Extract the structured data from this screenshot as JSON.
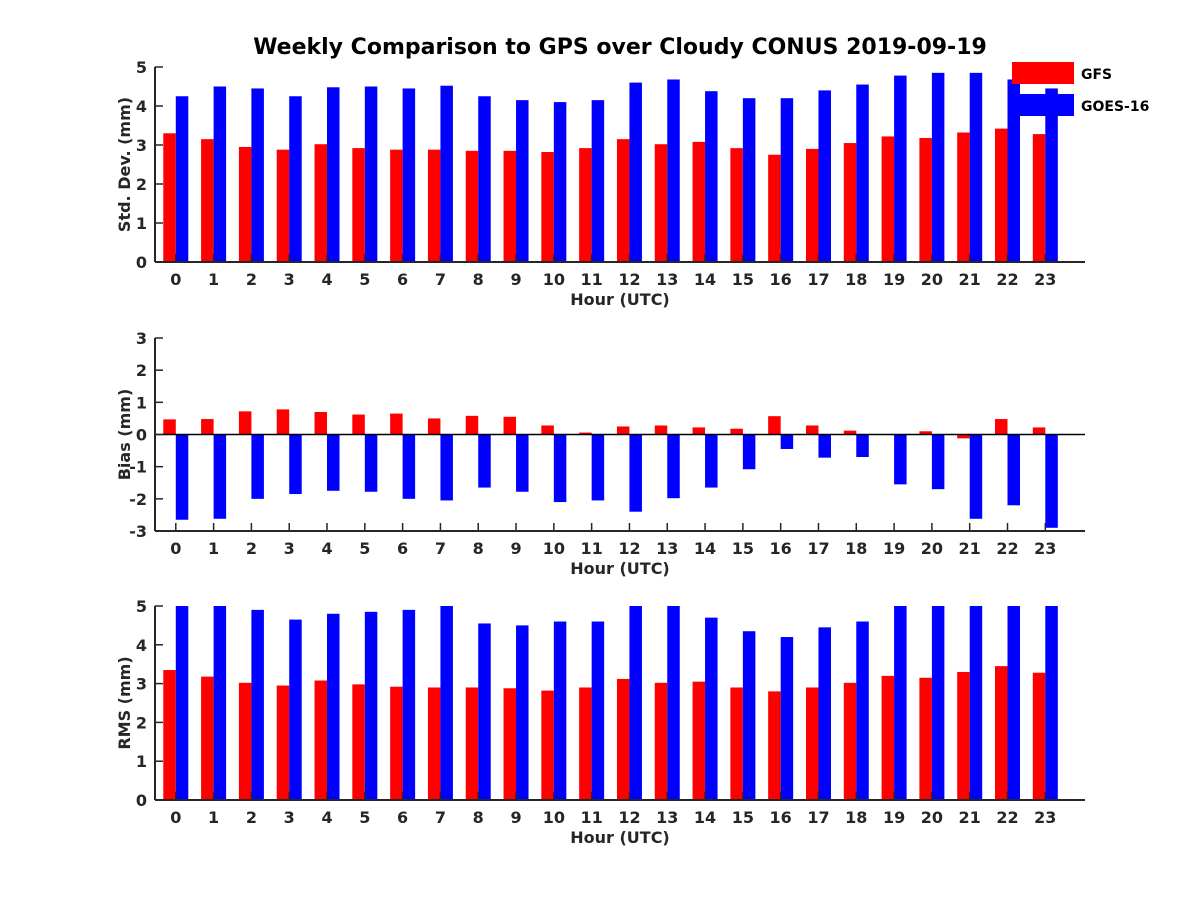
{
  "title": "Weekly Comparison to GPS over Cloudy CONUS 2019-09-19",
  "legend": {
    "placement": "top-right",
    "entries": [
      {
        "name": "GFS",
        "color": "#ff0000"
      },
      {
        "name": "GOES-16",
        "color": "#0000ff"
      }
    ]
  },
  "chart_data": [
    {
      "type": "bar",
      "xlabel": "Hour (UTC)",
      "ylabel": "Std. Dev. (mm)",
      "ylim": [
        0,
        5
      ],
      "yticks": [
        0,
        1,
        2,
        3,
        4,
        5
      ],
      "grid": false,
      "categories": [
        "0",
        "1",
        "2",
        "3",
        "4",
        "5",
        "6",
        "7",
        "8",
        "9",
        "10",
        "11",
        "12",
        "13",
        "14",
        "15",
        "16",
        "17",
        "18",
        "19",
        "20",
        "21",
        "22",
        "23"
      ],
      "series": [
        {
          "name": "GFS",
          "color": "#ff0000",
          "values": [
            3.3,
            3.15,
            2.95,
            2.88,
            3.02,
            2.92,
            2.88,
            2.88,
            2.85,
            2.85,
            2.82,
            2.92,
            3.15,
            3.02,
            3.08,
            2.92,
            2.75,
            2.9,
            3.05,
            3.22,
            3.18,
            3.32,
            3.42,
            3.28
          ]
        },
        {
          "name": "GOES-16",
          "color": "#0000ff",
          "values": [
            4.25,
            4.5,
            4.45,
            4.25,
            4.48,
            4.5,
            4.45,
            4.52,
            4.25,
            4.15,
            4.1,
            4.15,
            4.6,
            4.68,
            4.38,
            4.2,
            4.2,
            4.4,
            4.55,
            4.78,
            4.85,
            4.85,
            4.68,
            4.45
          ]
        }
      ]
    },
    {
      "type": "bar",
      "xlabel": "Hour (UTC)",
      "ylabel": "Bias (mm)",
      "ylim": [
        -3,
        3
      ],
      "yticks": [
        -3,
        -2,
        -1,
        0,
        1,
        2,
        3
      ],
      "grid": false,
      "categories": [
        "0",
        "1",
        "2",
        "3",
        "4",
        "5",
        "6",
        "7",
        "8",
        "9",
        "10",
        "11",
        "12",
        "13",
        "14",
        "15",
        "16",
        "17",
        "18",
        "19",
        "20",
        "21",
        "22",
        "23"
      ],
      "series": [
        {
          "name": "GFS",
          "color": "#ff0000",
          "values": [
            0.47,
            0.48,
            0.72,
            0.78,
            0.7,
            0.62,
            0.65,
            0.5,
            0.58,
            0.55,
            0.28,
            0.06,
            0.25,
            0.28,
            0.22,
            0.18,
            0.57,
            0.28,
            0.12,
            0.0,
            0.1,
            -0.12,
            0.48,
            0.22
          ]
        },
        {
          "name": "GOES-16",
          "color": "#0000ff",
          "values": [
            -2.65,
            -2.62,
            -2.0,
            -1.85,
            -1.75,
            -1.78,
            -2.0,
            -2.05,
            -1.65,
            -1.78,
            -2.1,
            -2.05,
            -2.4,
            -1.98,
            -1.65,
            -1.08,
            -0.45,
            -0.72,
            -0.7,
            -1.55,
            -1.7,
            -2.62,
            -2.2,
            -2.9
          ]
        }
      ]
    },
    {
      "type": "bar",
      "xlabel": "Hour (UTC)",
      "ylabel": "RMS (mm)",
      "ylim": [
        0,
        5
      ],
      "yticks": [
        0,
        1,
        2,
        3,
        4,
        5
      ],
      "grid": false,
      "categories": [
        "0",
        "1",
        "2",
        "3",
        "4",
        "5",
        "6",
        "7",
        "8",
        "9",
        "10",
        "11",
        "12",
        "13",
        "14",
        "15",
        "16",
        "17",
        "18",
        "19",
        "20",
        "21",
        "22",
        "23"
      ],
      "series": [
        {
          "name": "GFS",
          "color": "#ff0000",
          "values": [
            3.35,
            3.18,
            3.02,
            2.95,
            3.08,
            2.98,
            2.92,
            2.9,
            2.9,
            2.88,
            2.82,
            2.9,
            3.12,
            3.02,
            3.05,
            2.9,
            2.8,
            2.9,
            3.02,
            3.2,
            3.15,
            3.3,
            3.45,
            3.28
          ]
        },
        {
          "name": "GOES-16",
          "color": "#0000ff",
          "values": [
            5.0,
            5.0,
            4.9,
            4.65,
            4.8,
            4.85,
            4.9,
            5.0,
            4.55,
            4.5,
            4.6,
            4.6,
            5.0,
            5.0,
            4.7,
            4.35,
            4.2,
            4.45,
            4.6,
            5.0,
            5.0,
            5.0,
            5.0,
            5.0
          ]
        }
      ]
    }
  ]
}
